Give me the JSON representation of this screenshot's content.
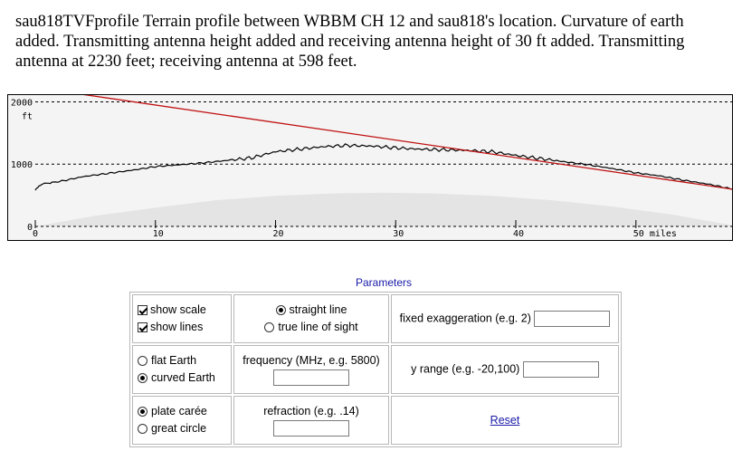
{
  "caption": "sau818TVFprofile  Terrain profile between WBBM CH 12 and sau818's location. Curvature of earth added. Transmitting antenna height added and receiving antenna height of 30 ft added. Transmitting antenna at 2230 feet; receiving antenna at 598 feet.",
  "chart_data": {
    "type": "line",
    "x_unit": "miles",
    "y_unit": "ft",
    "xlim": [
      0,
      58
    ],
    "ylim": [
      0,
      2050
    ],
    "y_ticks": [
      {
        "label": "2000",
        "value": 2000
      },
      {
        "label": "ft"
      },
      {
        "label": "1000",
        "value": 1000
      },
      {
        "label": "0",
        "value": 0
      }
    ],
    "x_ticks": [
      {
        "label": "0",
        "value": 0
      },
      {
        "label": "10",
        "value": 10
      },
      {
        "label": "20",
        "value": 20
      },
      {
        "label": "30",
        "value": 30
      },
      {
        "label": "40",
        "value": 40
      },
      {
        "label": "50 miles",
        "value": 50
      }
    ],
    "gridlines_y": [
      2000,
      1000,
      0
    ],
    "line_of_sight": {
      "color": "#c01010",
      "points": [
        [
          0,
          2230
        ],
        [
          58,
          598
        ]
      ]
    },
    "terrain": {
      "color": "#000000",
      "points": [
        [
          0,
          580
        ],
        [
          0.5,
          680
        ],
        [
          2,
          720
        ],
        [
          4,
          800
        ],
        [
          6,
          850
        ],
        [
          8,
          900
        ],
        [
          10,
          960
        ],
        [
          12,
          990
        ],
        [
          14,
          1020
        ],
        [
          16,
          1060
        ],
        [
          18,
          1100
        ],
        [
          20,
          1200
        ],
        [
          22,
          1240
        ],
        [
          24,
          1280
        ],
        [
          26,
          1300
        ],
        [
          28,
          1290
        ],
        [
          30,
          1260
        ],
        [
          32,
          1240
        ],
        [
          34,
          1230
        ],
        [
          36,
          1220
        ],
        [
          38,
          1200
        ],
        [
          40,
          1140
        ],
        [
          42,
          1090
        ],
        [
          44,
          1040
        ],
        [
          46,
          990
        ],
        [
          48,
          930
        ],
        [
          50,
          860
        ],
        [
          52,
          810
        ],
        [
          54,
          740
        ],
        [
          56,
          680
        ],
        [
          58,
          598
        ]
      ]
    },
    "curvature_bulge": {
      "color": "#e4e4e4",
      "points": [
        [
          0,
          0
        ],
        [
          5,
          170
        ],
        [
          10,
          300
        ],
        [
          15,
          420
        ],
        [
          20,
          490
        ],
        [
          25,
          530
        ],
        [
          29,
          540
        ],
        [
          33,
          530
        ],
        [
          38,
          490
        ],
        [
          43,
          420
        ],
        [
          48,
          320
        ],
        [
          53,
          190
        ],
        [
          58,
          20
        ]
      ]
    }
  },
  "params": {
    "title": "Parameters",
    "show_scale": "show scale",
    "show_lines": "show lines",
    "straight_line": "straight line",
    "true_los": "true line of sight",
    "fixed_exag": "fixed exaggeration (e.g. 2)",
    "flat_earth": "flat Earth",
    "curved_earth": "curved Earth",
    "frequency": "frequency (MHz, e.g. 5800)",
    "y_range": "y range (e.g. -20,100)",
    "plate_caree": "plate carée",
    "great_circle": "great circle",
    "refraction": "refraction (e.g. .14)",
    "reset": "Reset"
  }
}
